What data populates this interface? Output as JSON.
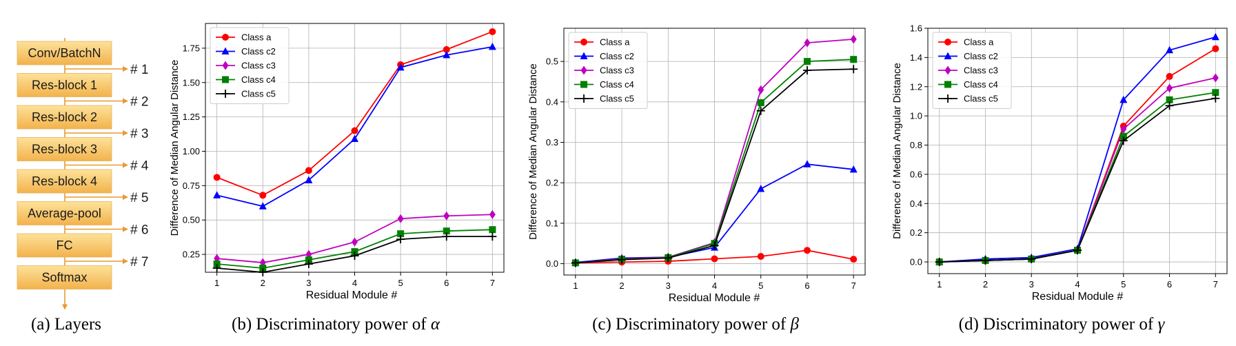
{
  "layers_panel": {
    "caption": "(a) Layers",
    "layers": [
      "Conv/BatchN",
      "Res-block 1",
      "Res-block 2",
      "Res-block 3",
      "Res-block 4",
      "Average-pool",
      "FC",
      "Softmax"
    ],
    "taps": [
      "# 1",
      "# 2",
      "# 3",
      "# 4",
      "# 5",
      "# 6",
      "# 7"
    ],
    "colors": {
      "box_top": "#fde29a",
      "box_bottom": "#f2b24c",
      "arrow": "#e69a2e"
    }
  },
  "legend_labels": [
    "Class a",
    "Class c2",
    "Class c3",
    "Class c4",
    "Class c5"
  ],
  "chart_data": [
    {
      "type": "line",
      "caption_prefix": "(b) Discriminatory power of ",
      "caption_symbol": "α",
      "xlabel": "Residual Module #",
      "ylabel": "Difference of Median Angular Distance",
      "x": [
        1,
        2,
        3,
        4,
        5,
        6,
        7
      ],
      "ylim": [
        0.12,
        1.93
      ],
      "yticks": [
        0.25,
        0.5,
        0.75,
        1.0,
        1.25,
        1.5,
        1.75
      ],
      "ytick_labels": [
        "0.25",
        "0.50",
        "0.75",
        "1.00",
        "1.25",
        "1.50",
        "1.75"
      ],
      "grid": true,
      "legend": "top-left",
      "series": [
        {
          "name": "Class a",
          "color": "#ff0000",
          "marker": "circle",
          "values": [
            0.81,
            0.68,
            0.86,
            1.15,
            1.63,
            1.74,
            1.87
          ]
        },
        {
          "name": "Class c2",
          "color": "#0000ff",
          "marker": "triangle",
          "values": [
            0.68,
            0.6,
            0.79,
            1.09,
            1.61,
            1.7,
            1.76
          ]
        },
        {
          "name": "Class c3",
          "color": "#bf00bf",
          "marker": "diamond",
          "values": [
            0.22,
            0.19,
            0.25,
            0.34,
            0.51,
            0.53,
            0.54
          ]
        },
        {
          "name": "Class c4",
          "color": "#008000",
          "marker": "square",
          "values": [
            0.18,
            0.15,
            0.21,
            0.27,
            0.4,
            0.42,
            0.43
          ]
        },
        {
          "name": "Class c5",
          "color": "#000000",
          "marker": "plus",
          "values": [
            0.15,
            0.12,
            0.18,
            0.24,
            0.36,
            0.38,
            0.38
          ]
        }
      ]
    },
    {
      "type": "line",
      "caption_prefix": "(c) Discriminatory power of ",
      "caption_symbol": "β",
      "xlabel": "Residual Module #",
      "ylabel": "Difference of Median Angular Distance",
      "x": [
        1,
        2,
        3,
        4,
        5,
        6,
        7
      ],
      "ylim": [
        -0.028,
        0.582
      ],
      "yticks": [
        0.0,
        0.1,
        0.2,
        0.3,
        0.4,
        0.5
      ],
      "ytick_labels": [
        "0.0",
        "0.1",
        "0.2",
        "0.3",
        "0.4",
        "0.5"
      ],
      "grid": true,
      "legend": "top-left",
      "series": [
        {
          "name": "Class a",
          "color": "#ff0000",
          "marker": "circle",
          "values": [
            0.002,
            0.004,
            0.006,
            0.012,
            0.018,
            0.033,
            0.011
          ]
        },
        {
          "name": "Class c2",
          "color": "#0000ff",
          "marker": "triangle",
          "values": [
            0.003,
            0.014,
            0.016,
            0.04,
            0.185,
            0.246,
            0.233
          ]
        },
        {
          "name": "Class c3",
          "color": "#bf00bf",
          "marker": "diamond",
          "values": [
            0.002,
            0.012,
            0.016,
            0.052,
            0.43,
            0.546,
            0.555
          ]
        },
        {
          "name": "Class c4",
          "color": "#008000",
          "marker": "square",
          "values": [
            0.002,
            0.011,
            0.015,
            0.05,
            0.398,
            0.5,
            0.505
          ]
        },
        {
          "name": "Class c5",
          "color": "#000000",
          "marker": "plus",
          "values": [
            0.002,
            0.01,
            0.014,
            0.045,
            0.378,
            0.478,
            0.481
          ]
        }
      ]
    },
    {
      "type": "line",
      "caption_prefix": "(d) Discriminatory power of ",
      "caption_symbol": "γ",
      "xlabel": "Residual Module #",
      "ylabel": "Difference of Median Angular Distance",
      "x": [
        1,
        2,
        3,
        4,
        5,
        6,
        7
      ],
      "ylim": [
        -0.08,
        1.6
      ],
      "yticks": [
        0.0,
        0.2,
        0.4,
        0.6,
        0.8,
        1.0,
        1.2,
        1.4,
        1.6
      ],
      "ytick_labels": [
        "0.0",
        "0.2",
        "0.4",
        "0.6",
        "0.8",
        "1.0",
        "1.2",
        "1.4",
        "1.6"
      ],
      "grid": true,
      "legend": "top-left",
      "series": [
        {
          "name": "Class a",
          "color": "#ff0000",
          "marker": "circle",
          "values": [
            0.0,
            0.01,
            0.02,
            0.08,
            0.93,
            1.27,
            1.46
          ]
        },
        {
          "name": "Class c2",
          "color": "#0000ff",
          "marker": "triangle",
          "values": [
            0.0,
            0.02,
            0.03,
            0.09,
            1.11,
            1.45,
            1.54
          ]
        },
        {
          "name": "Class c3",
          "color": "#bf00bf",
          "marker": "diamond",
          "values": [
            0.0,
            0.01,
            0.02,
            0.08,
            0.91,
            1.19,
            1.26
          ]
        },
        {
          "name": "Class c4",
          "color": "#008000",
          "marker": "square",
          "values": [
            0.0,
            0.01,
            0.02,
            0.08,
            0.86,
            1.11,
            1.16
          ]
        },
        {
          "name": "Class c5",
          "color": "#000000",
          "marker": "plus",
          "values": [
            0.0,
            0.01,
            0.02,
            0.08,
            0.83,
            1.07,
            1.12
          ]
        }
      ]
    }
  ]
}
